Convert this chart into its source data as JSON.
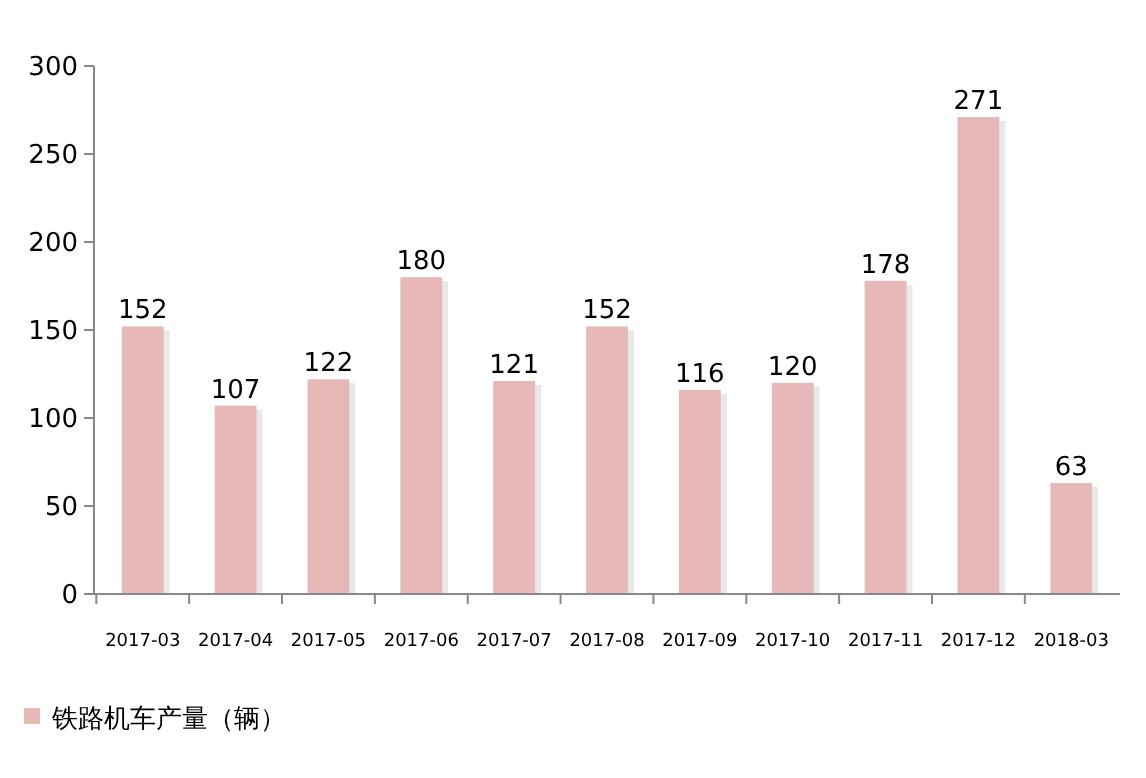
{
  "chart_data": {
    "type": "bar",
    "categories": [
      "2017-03",
      "2017-04",
      "2017-05",
      "2017-06",
      "2017-07",
      "2017-08",
      "2017-09",
      "2017-10",
      "2017-11",
      "2017-12",
      "2018-03"
    ],
    "series": [
      {
        "name": "铁路机车产量（辆）",
        "color": "#e6b8b7",
        "values": [
          152,
          107,
          122,
          180,
          121,
          152,
          116,
          120,
          178,
          271,
          63
        ]
      }
    ],
    "ylim": [
      0,
      300
    ],
    "yticks": [
      0,
      50,
      100,
      150,
      200,
      250,
      300
    ],
    "data_labels": true,
    "legend": "bottom left",
    "grid": false
  }
}
